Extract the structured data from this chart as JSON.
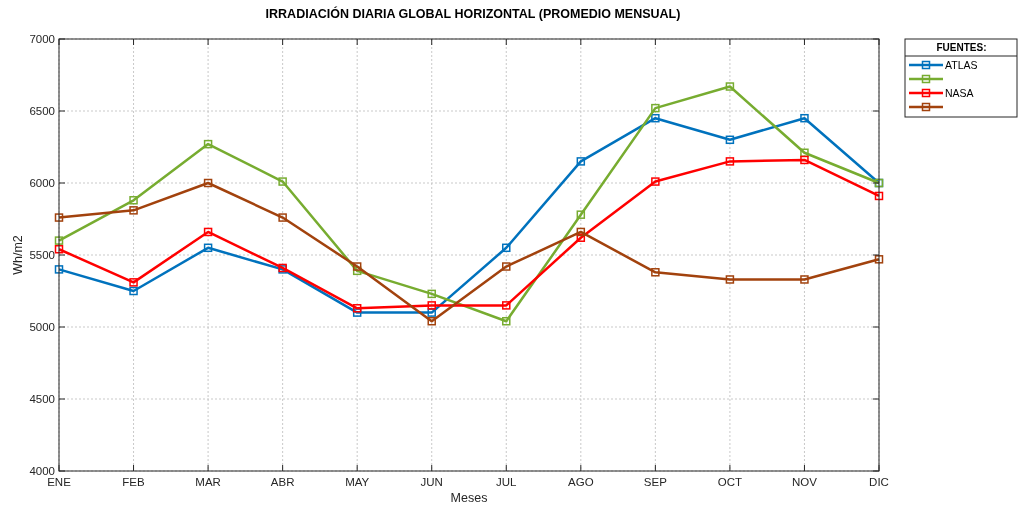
{
  "chart_data": {
    "type": "line",
    "title": "IRRADIACIÓN DIARIA GLOBAL HORIZONTAL (PROMEDIO MENSUAL)",
    "xlabel": "Meses",
    "ylabel": "Wh/m2",
    "legend_title": "FUENTES:",
    "categories": [
      "ENE",
      "FEB",
      "MAR",
      "ABR",
      "MAY",
      "JUN",
      "JUL",
      "AGO",
      "SEP",
      "OCT",
      "NOV",
      "DIC"
    ],
    "series": [
      {
        "name": "ATLAS",
        "color": "#0072bd",
        "values": [
          5400,
          5250,
          5550,
          5400,
          5100,
          5100,
          5550,
          6150,
          6450,
          6300,
          6450,
          6000
        ]
      },
      {
        "color": "#77ac30",
        "values": [
          5600,
          5880,
          6270,
          6010,
          5390,
          5230,
          5040,
          5780,
          6520,
          6670,
          6210,
          6000
        ]
      },
      {
        "name": "NASA",
        "color": "#ff0000",
        "values": [
          5540,
          5310,
          5660,
          5410,
          5130,
          5150,
          5150,
          5620,
          6010,
          6150,
          6160,
          5910
        ]
      },
      {
        "color": "#a2420d",
        "values": [
          5760,
          5810,
          6000,
          5760,
          5420,
          5040,
          5420,
          5660,
          5380,
          5330,
          5330,
          5470
        ]
      }
    ],
    "ylim": [
      4000,
      7000
    ],
    "yticks": [
      4000,
      4500,
      5000,
      5500,
      6000,
      6500,
      7000
    ],
    "grid": true,
    "legend": "top right",
    "marker": "square",
    "line_style": "solid"
  }
}
